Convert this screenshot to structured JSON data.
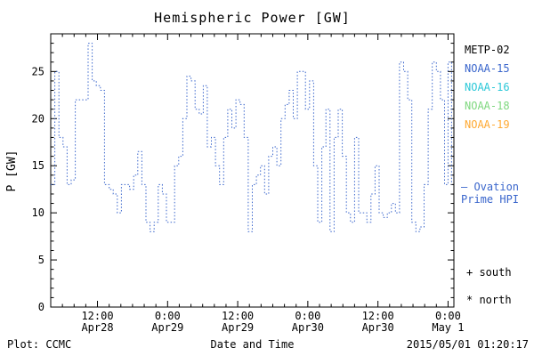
{
  "chart_data": {
    "type": "line",
    "title": "Hemispheric Power [GW]",
    "xlabel": "Date and Time",
    "ylabel": "P [GW]",
    "x_unit": "hours from Apr 28 2015 00:00 UT",
    "xlim": [
      4,
      73
    ],
    "ylim": [
      0,
      29
    ],
    "grid": false,
    "legend_position": "right",
    "yticks": [
      0,
      5,
      10,
      15,
      20,
      25
    ],
    "xticks": [
      {
        "hour": 12,
        "time": "12:00",
        "date": "Apr28"
      },
      {
        "hour": 24,
        "time": "0:00",
        "date": "Apr29"
      },
      {
        "hour": 36,
        "time": "12:00",
        "date": "Apr29"
      },
      {
        "hour": 48,
        "time": "0:00",
        "date": "Apr30"
      },
      {
        "hour": 60,
        "time": "12:00",
        "date": "Apr30"
      },
      {
        "hour": 72,
        "time": "0:00",
        "date": "May 1"
      }
    ],
    "series": [
      {
        "name": "Ovation Prime HPI",
        "color": "#3a66cc",
        "style": "dotted-step",
        "points": [
          [
            4.0,
            13
          ],
          [
            4.7,
            25
          ],
          [
            5.4,
            18
          ],
          [
            6.1,
            17
          ],
          [
            6.8,
            13
          ],
          [
            7.5,
            13.5
          ],
          [
            8.2,
            22
          ],
          [
            9.0,
            22
          ],
          [
            9.7,
            22
          ],
          [
            10.4,
            28
          ],
          [
            11.1,
            24
          ],
          [
            11.8,
            23.5
          ],
          [
            12.5,
            23
          ],
          [
            13.2,
            13
          ],
          [
            14.0,
            12.5
          ],
          [
            14.7,
            12
          ],
          [
            15.4,
            10
          ],
          [
            16.1,
            13
          ],
          [
            16.8,
            13
          ],
          [
            17.5,
            12.5
          ],
          [
            18.2,
            14
          ],
          [
            18.9,
            16.5
          ],
          [
            19.6,
            13
          ],
          [
            20.3,
            9
          ],
          [
            21.0,
            8
          ],
          [
            21.7,
            9
          ],
          [
            22.4,
            13
          ],
          [
            23.1,
            12
          ],
          [
            23.8,
            9
          ],
          [
            24.5,
            9
          ],
          [
            25.2,
            15
          ],
          [
            25.9,
            16
          ],
          [
            26.6,
            20
          ],
          [
            27.3,
            24.5
          ],
          [
            28.0,
            24
          ],
          [
            28.7,
            21
          ],
          [
            29.4,
            20.5
          ],
          [
            30.1,
            23.5
          ],
          [
            30.8,
            17
          ],
          [
            31.5,
            18
          ],
          [
            32.2,
            15
          ],
          [
            32.9,
            13
          ],
          [
            33.6,
            18
          ],
          [
            34.3,
            21
          ],
          [
            35.0,
            19
          ],
          [
            35.7,
            22
          ],
          [
            36.4,
            21.5
          ],
          [
            37.1,
            18
          ],
          [
            37.8,
            8
          ],
          [
            38.5,
            13
          ],
          [
            39.2,
            14
          ],
          [
            39.9,
            15
          ],
          [
            40.6,
            12
          ],
          [
            41.3,
            16
          ],
          [
            42.0,
            17
          ],
          [
            42.7,
            15
          ],
          [
            43.4,
            20
          ],
          [
            44.1,
            21.5
          ],
          [
            44.8,
            23
          ],
          [
            45.5,
            20
          ],
          [
            46.2,
            25
          ],
          [
            46.9,
            25
          ],
          [
            47.6,
            21
          ],
          [
            48.3,
            24
          ],
          [
            49.0,
            15
          ],
          [
            49.7,
            9
          ],
          [
            50.4,
            17
          ],
          [
            51.1,
            21
          ],
          [
            51.8,
            8
          ],
          [
            52.5,
            18
          ],
          [
            53.2,
            21
          ],
          [
            53.9,
            16
          ],
          [
            54.6,
            10
          ],
          [
            55.3,
            9
          ],
          [
            56.0,
            18
          ],
          [
            56.7,
            10
          ],
          [
            57.4,
            10
          ],
          [
            58.1,
            9
          ],
          [
            58.8,
            12
          ],
          [
            59.5,
            15
          ],
          [
            60.2,
            10
          ],
          [
            60.9,
            9.5
          ],
          [
            61.6,
            10
          ],
          [
            62.3,
            11
          ],
          [
            63.0,
            10
          ],
          [
            63.7,
            26
          ],
          [
            64.4,
            25
          ],
          [
            65.1,
            22
          ],
          [
            65.8,
            9
          ],
          [
            66.5,
            8
          ],
          [
            67.2,
            8.5
          ],
          [
            67.9,
            13
          ],
          [
            68.6,
            21
          ],
          [
            69.3,
            26
          ],
          [
            70.0,
            25
          ],
          [
            70.7,
            22
          ],
          [
            71.4,
            13
          ],
          [
            72.0,
            26
          ],
          [
            72.6,
            13
          ]
        ]
      }
    ]
  },
  "legend": {
    "satellites": [
      {
        "name": "METP-02",
        "color": "#000000"
      },
      {
        "name": "NOAA-15",
        "color": "#3a66cc"
      },
      {
        "name": "NOAA-16",
        "color": "#2cc8d8"
      },
      {
        "name": "NOAA-18",
        "color": "#7fd87f"
      },
      {
        "name": "NOAA-19",
        "color": "#ffaa33"
      }
    ],
    "ovation_line1": "— Ovation",
    "ovation_line2": "Prime HPI",
    "ovation_color": "#3a66cc",
    "south_label": "+ south",
    "north_label": "* north"
  },
  "footer": {
    "credit": "Plot: CCMC",
    "timestamp": "2015/05/01 01:20:17"
  }
}
